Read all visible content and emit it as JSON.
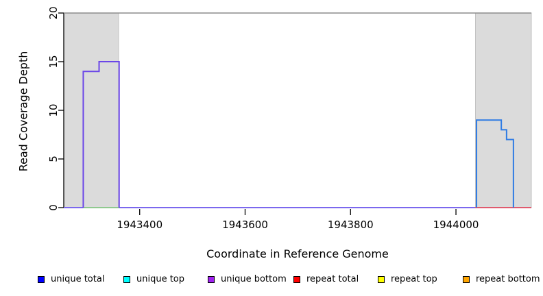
{
  "figure": {
    "y_axis_label": "Read Coverage Depth",
    "x_axis_label": "Coordinate in Reference Genome"
  },
  "legend": {
    "items": [
      {
        "label": "unique total",
        "color": "#0000FF"
      },
      {
        "label": "unique top",
        "color": "#00FFFF"
      },
      {
        "label": "unique bottom",
        "color": "#A020F0"
      },
      {
        "label": "repeat total",
        "color": "#FF0000"
      },
      {
        "label": "repeat top",
        "color": "#FFFF00"
      },
      {
        "label": "repeat bottom",
        "color": "#FFA500"
      }
    ]
  },
  "chart_data": {
    "type": "line",
    "title": "",
    "xlabel": "Coordinate in Reference Genome",
    "ylabel": "Read Coverage Depth",
    "xlim": [
      1943256,
      1944143
    ],
    "ylim": [
      0,
      20
    ],
    "x_ticks": [
      1943400,
      1943600,
      1943800,
      1944000
    ],
    "y_ticks": [
      0,
      5,
      10,
      15,
      20
    ],
    "grid": false,
    "legend_position": "bottom",
    "axis_color": "#000000",
    "highlight_regions": [
      {
        "name": "left-shaded-repeat-region",
        "x_start": 1943256,
        "x_end": 1943360,
        "y_start": 0,
        "y_end": 20,
        "fill": "#DBDBDB",
        "stroke": "#C2C2C2"
      },
      {
        "name": "right-shaded-repeat-region",
        "x_start": 1944037,
        "x_end": 1944143,
        "y_start": 0,
        "y_end": 20,
        "fill": "#DBDBDB",
        "stroke": "#C2C2C2"
      }
    ],
    "series": [
      {
        "name": "coverage-cap-line",
        "color": "#8C8C8C",
        "width": 1.5,
        "points": [
          [
            1943256,
            20
          ],
          [
            1944143,
            20
          ]
        ]
      },
      {
        "name": "zero-baseline-unique-bottom",
        "color": "#7B68EE",
        "width": 2,
        "points": [
          [
            1943256,
            0
          ],
          [
            1944143,
            0
          ]
        ]
      },
      {
        "name": "green-baseline-segment",
        "color": "#8FC98F",
        "width": 2,
        "points": [
          [
            1943293,
            0
          ],
          [
            1943361,
            0
          ]
        ]
      },
      {
        "name": "red-baseline-segment-repeat-total",
        "color": "#E05A6E",
        "width": 2,
        "points": [
          [
            1944036,
            0
          ],
          [
            1944143,
            0
          ]
        ]
      },
      {
        "name": "unique-bottom-coverage-peak",
        "color": "#6B46E8",
        "width": 2,
        "points": [
          [
            1943293,
            0
          ],
          [
            1943293,
            14
          ],
          [
            1943323,
            14
          ],
          [
            1943323,
            15
          ],
          [
            1943361,
            15
          ],
          [
            1943361,
            0
          ]
        ]
      },
      {
        "name": "unique-total-coverage-peak",
        "color": "#2E7BE4",
        "width": 2,
        "points": [
          [
            1944039,
            0
          ],
          [
            1944039,
            9
          ],
          [
            1944086,
            9
          ],
          [
            1944086,
            8
          ],
          [
            1944096,
            8
          ],
          [
            1944096,
            7
          ],
          [
            1944109,
            7
          ],
          [
            1944109,
            0
          ]
        ]
      }
    ]
  }
}
